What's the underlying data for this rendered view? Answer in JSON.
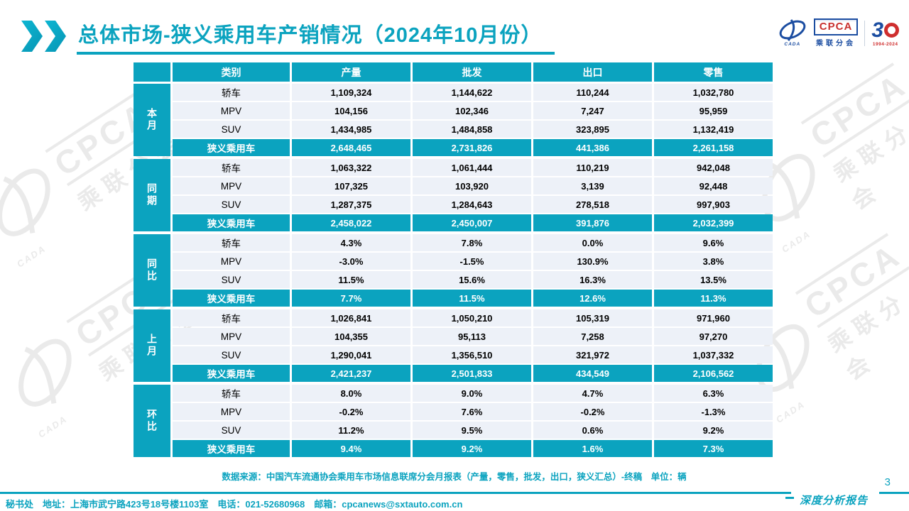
{
  "page": {
    "title": "总体市场-狭义乘用车产销情况（2024年10月份）",
    "page_number": "3",
    "report_label": "深度分析报告"
  },
  "logo": {
    "cpca_text": "CPCA",
    "cpca_sub": "乘联分会",
    "cada_text": "CADA",
    "anniversary_3": "3",
    "anniversary_years": "1994-2024"
  },
  "watermark": {
    "cpca": "CPCA",
    "sub": "乘联分会",
    "cada": "CADA"
  },
  "colors": {
    "teal": "#0ba3bf",
    "row_bg": "#edf1f8",
    "logo_blue": "#1b4da1",
    "logo_red": "#cf2e2e"
  },
  "table": {
    "columns": [
      "类别",
      "产量",
      "批发",
      "出口",
      "零售"
    ],
    "groups": [
      {
        "label": "本月",
        "rows": [
          {
            "category": "轿车",
            "values": [
              "1,109,324",
              "1,144,622",
              "110,244",
              "1,032,780"
            ],
            "highlight": false
          },
          {
            "category": "MPV",
            "values": [
              "104,156",
              "102,346",
              "7,247",
              "95,959"
            ],
            "highlight": false
          },
          {
            "category": "SUV",
            "values": [
              "1,434,985",
              "1,484,858",
              "323,895",
              "1,132,419"
            ],
            "highlight": false
          },
          {
            "category": "狭义乘用车",
            "values": [
              "2,648,465",
              "2,731,826",
              "441,386",
              "2,261,158"
            ],
            "highlight": true
          }
        ]
      },
      {
        "label": "同期",
        "rows": [
          {
            "category": "轿车",
            "values": [
              "1,063,322",
              "1,061,444",
              "110,219",
              "942,048"
            ],
            "highlight": false
          },
          {
            "category": "MPV",
            "values": [
              "107,325",
              "103,920",
              "3,139",
              "92,448"
            ],
            "highlight": false
          },
          {
            "category": "SUV",
            "values": [
              "1,287,375",
              "1,284,643",
              "278,518",
              "997,903"
            ],
            "highlight": false
          },
          {
            "category": "狭义乘用车",
            "values": [
              "2,458,022",
              "2,450,007",
              "391,876",
              "2,032,399"
            ],
            "highlight": true
          }
        ]
      },
      {
        "label": "同比",
        "rows": [
          {
            "category": "轿车",
            "values": [
              "4.3%",
              "7.8%",
              "0.0%",
              "9.6%"
            ],
            "highlight": false
          },
          {
            "category": "MPV",
            "values": [
              "-3.0%",
              "-1.5%",
              "130.9%",
              "3.8%"
            ],
            "highlight": false
          },
          {
            "category": "SUV",
            "values": [
              "11.5%",
              "15.6%",
              "16.3%",
              "13.5%"
            ],
            "highlight": false
          },
          {
            "category": "狭义乘用车",
            "values": [
              "7.7%",
              "11.5%",
              "12.6%",
              "11.3%"
            ],
            "highlight": true
          }
        ]
      },
      {
        "label": "上月",
        "rows": [
          {
            "category": "轿车",
            "values": [
              "1,026,841",
              "1,050,210",
              "105,319",
              "971,960"
            ],
            "highlight": false
          },
          {
            "category": "MPV",
            "values": [
              "104,355",
              "95,113",
              "7,258",
              "97,270"
            ],
            "highlight": false
          },
          {
            "category": "SUV",
            "values": [
              "1,290,041",
              "1,356,510",
              "321,972",
              "1,037,332"
            ],
            "highlight": false
          },
          {
            "category": "狭义乘用车",
            "values": [
              "2,421,237",
              "2,501,833",
              "434,549",
              "2,106,562"
            ],
            "highlight": true
          }
        ]
      },
      {
        "label": "环比",
        "rows": [
          {
            "category": "轿车",
            "values": [
              "8.0%",
              "9.0%",
              "4.7%",
              "6.3%"
            ],
            "highlight": false
          },
          {
            "category": "MPV",
            "values": [
              "-0.2%",
              "7.6%",
              "-0.2%",
              "-1.3%"
            ],
            "highlight": false
          },
          {
            "category": "SUV",
            "values": [
              "11.2%",
              "9.5%",
              "0.6%",
              "9.2%"
            ],
            "highlight": false
          },
          {
            "category": "狭义乘用车",
            "values": [
              "9.4%",
              "9.2%",
              "1.6%",
              "7.3%"
            ],
            "highlight": true
          }
        ]
      }
    ],
    "source_note": "数据来源：中国汽车流通协会乘用车市场信息联席分会月报表（产量，零售，批发，出口，狭义汇总）-终稿　单位：辆"
  },
  "footer": {
    "text": "秘书处　地址：上海市武宁路423号18号楼1103室　电话：021-52680968　邮箱：cpcanews@sxtauto.com.cn"
  }
}
